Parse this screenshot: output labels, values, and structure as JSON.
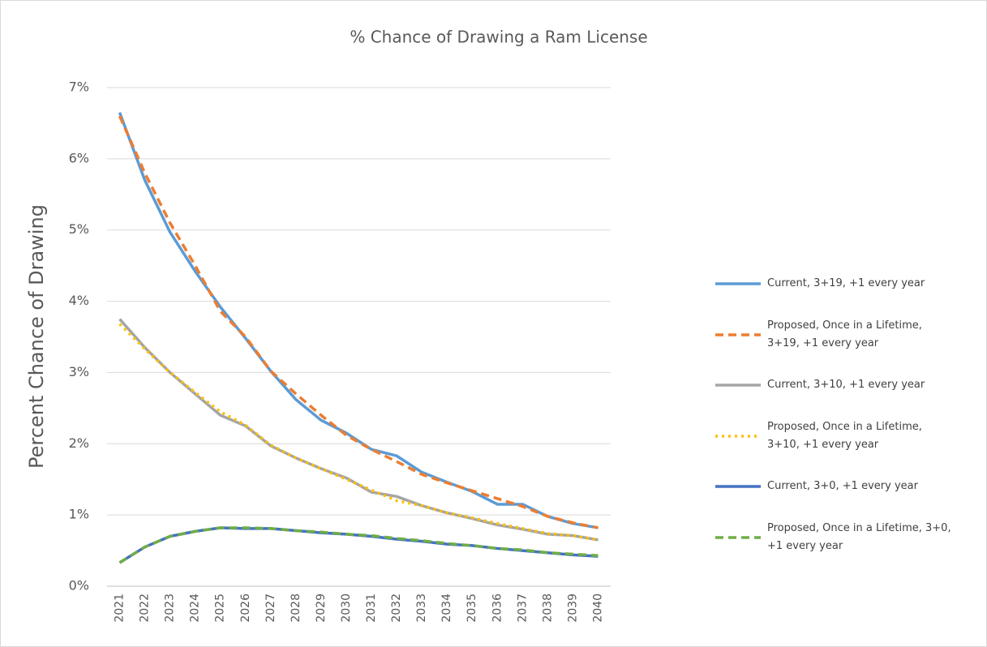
{
  "chart_data": {
    "type": "line",
    "title": "% Chance of Drawing a Ram License",
    "y_label": "Percent Chance of Drawing",
    "categories": [
      "2021",
      "2022",
      "2023",
      "2024",
      "2025",
      "2026",
      "2027",
      "2028",
      "2029",
      "2030",
      "2031",
      "2032",
      "2033",
      "2034",
      "2035",
      "2036",
      "2037",
      "2038",
      "2039",
      "2040"
    ],
    "series": [
      {
        "name": "Current, 3+19, +1 every year",
        "color": "#5b9bd5",
        "style": "solid",
        "values": [
          6.65,
          5.7,
          4.97,
          4.42,
          3.92,
          3.48,
          3.02,
          2.62,
          2.33,
          2.15,
          1.92,
          1.83,
          1.6,
          1.46,
          1.33,
          1.15,
          1.15,
          0.98,
          0.88,
          0.82
        ]
      },
      {
        "name": "Proposed, Once in a Lifetime, 3+19, +1 every year",
        "color": "#ed7d31",
        "style": "dashed",
        "values": [
          6.6,
          5.8,
          5.1,
          4.5,
          3.86,
          3.5,
          3.02,
          2.7,
          2.4,
          2.12,
          1.92,
          1.75,
          1.57,
          1.45,
          1.34,
          1.23,
          1.12,
          0.98,
          0.89,
          0.82
        ]
      },
      {
        "name": "Current, 3+10, +1 every year",
        "color": "#a5a5a5",
        "style": "solid",
        "values": [
          3.75,
          3.35,
          3.0,
          2.7,
          2.4,
          2.25,
          1.97,
          1.8,
          1.65,
          1.52,
          1.32,
          1.26,
          1.13,
          1.03,
          0.95,
          0.86,
          0.8,
          0.73,
          0.71,
          0.65
        ]
      },
      {
        "name": "Proposed, Once in a Lifetime, 3+10, +1 every year",
        "color": "#ffc000",
        "style": "dotted",
        "values": [
          3.68,
          3.33,
          3.0,
          2.72,
          2.45,
          2.26,
          1.98,
          1.8,
          1.65,
          1.5,
          1.35,
          1.2,
          1.13,
          1.03,
          0.96,
          0.88,
          0.81,
          0.74,
          0.71,
          0.65
        ]
      },
      {
        "name": "Current, 3+0, +1 every year",
        "color": "#4472c4",
        "style": "solid",
        "values": [
          0.33,
          0.55,
          0.7,
          0.77,
          0.82,
          0.81,
          0.81,
          0.78,
          0.75,
          0.73,
          0.7,
          0.66,
          0.63,
          0.59,
          0.57,
          0.53,
          0.5,
          0.47,
          0.44,
          0.42
        ]
      },
      {
        "name": "Proposed, Once in a Lifetime, 3+0, +1 every year",
        "color": "#70ad47",
        "style": "dashed",
        "values": [
          0.33,
          0.55,
          0.7,
          0.77,
          0.82,
          0.82,
          0.81,
          0.78,
          0.76,
          0.73,
          0.71,
          0.67,
          0.64,
          0.6,
          0.57,
          0.53,
          0.51,
          0.47,
          0.45,
          0.43
        ]
      }
    ],
    "ylim": [
      0,
      7
    ],
    "yticks": [
      {
        "value": 0,
        "label": "0%"
      },
      {
        "value": 1,
        "label": "1%"
      },
      {
        "value": 2,
        "label": "2%"
      },
      {
        "value": 3,
        "label": "3%"
      },
      {
        "value": 4,
        "label": "4%"
      },
      {
        "value": 5,
        "label": "5%"
      },
      {
        "value": 6,
        "label": "6%"
      },
      {
        "value": 7,
        "label": "7%"
      }
    ],
    "grid": true,
    "legend": "right"
  }
}
